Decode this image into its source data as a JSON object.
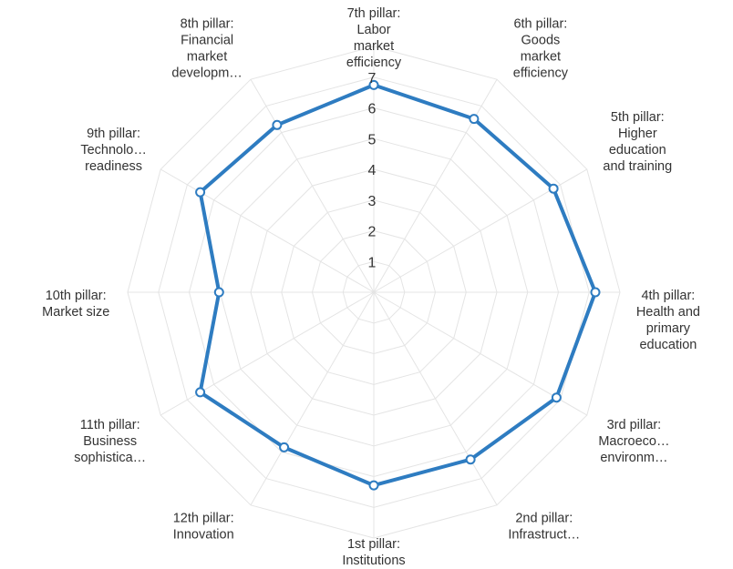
{
  "chart_data": {
    "type": "radar",
    "categories": [
      [
        "7th pillar:",
        "Labor",
        "market",
        "efficiency"
      ],
      [
        "6th pillar:",
        "Goods",
        "market",
        "efficiency"
      ],
      [
        "5th pillar:",
        "Higher",
        "education",
        "and training"
      ],
      [
        "4th pillar:",
        "Health and",
        "primary",
        "education"
      ],
      [
        "3rd pillar:",
        "Macroeco…",
        "environm…"
      ],
      [
        "2nd pillar:",
        "Infrastruct…"
      ],
      [
        "1st pillar:",
        "Institutions"
      ],
      [
        "12th pillar:",
        "Innovation"
      ],
      [
        "11th pillar:",
        "Business",
        "sophistica…"
      ],
      [
        "10th pillar:",
        "Market size"
      ],
      [
        "9th pillar:",
        "Technolo…",
        "readiness"
      ],
      [
        "8th pillar:",
        "Financial",
        "market",
        "developm…"
      ]
    ],
    "tick_labels": [
      "1",
      "2",
      "3",
      "4",
      "5",
      "6",
      "7"
    ],
    "rlim": [
      0,
      7
    ],
    "grid": true,
    "series": [
      {
        "values": [
          5.9,
          5.7,
          5.9,
          6.3,
          6.0,
          5.5,
          5.5,
          5.1,
          5.7,
          4.4,
          5.7,
          5.5
        ],
        "color": "#2e7cc1"
      }
    ]
  }
}
